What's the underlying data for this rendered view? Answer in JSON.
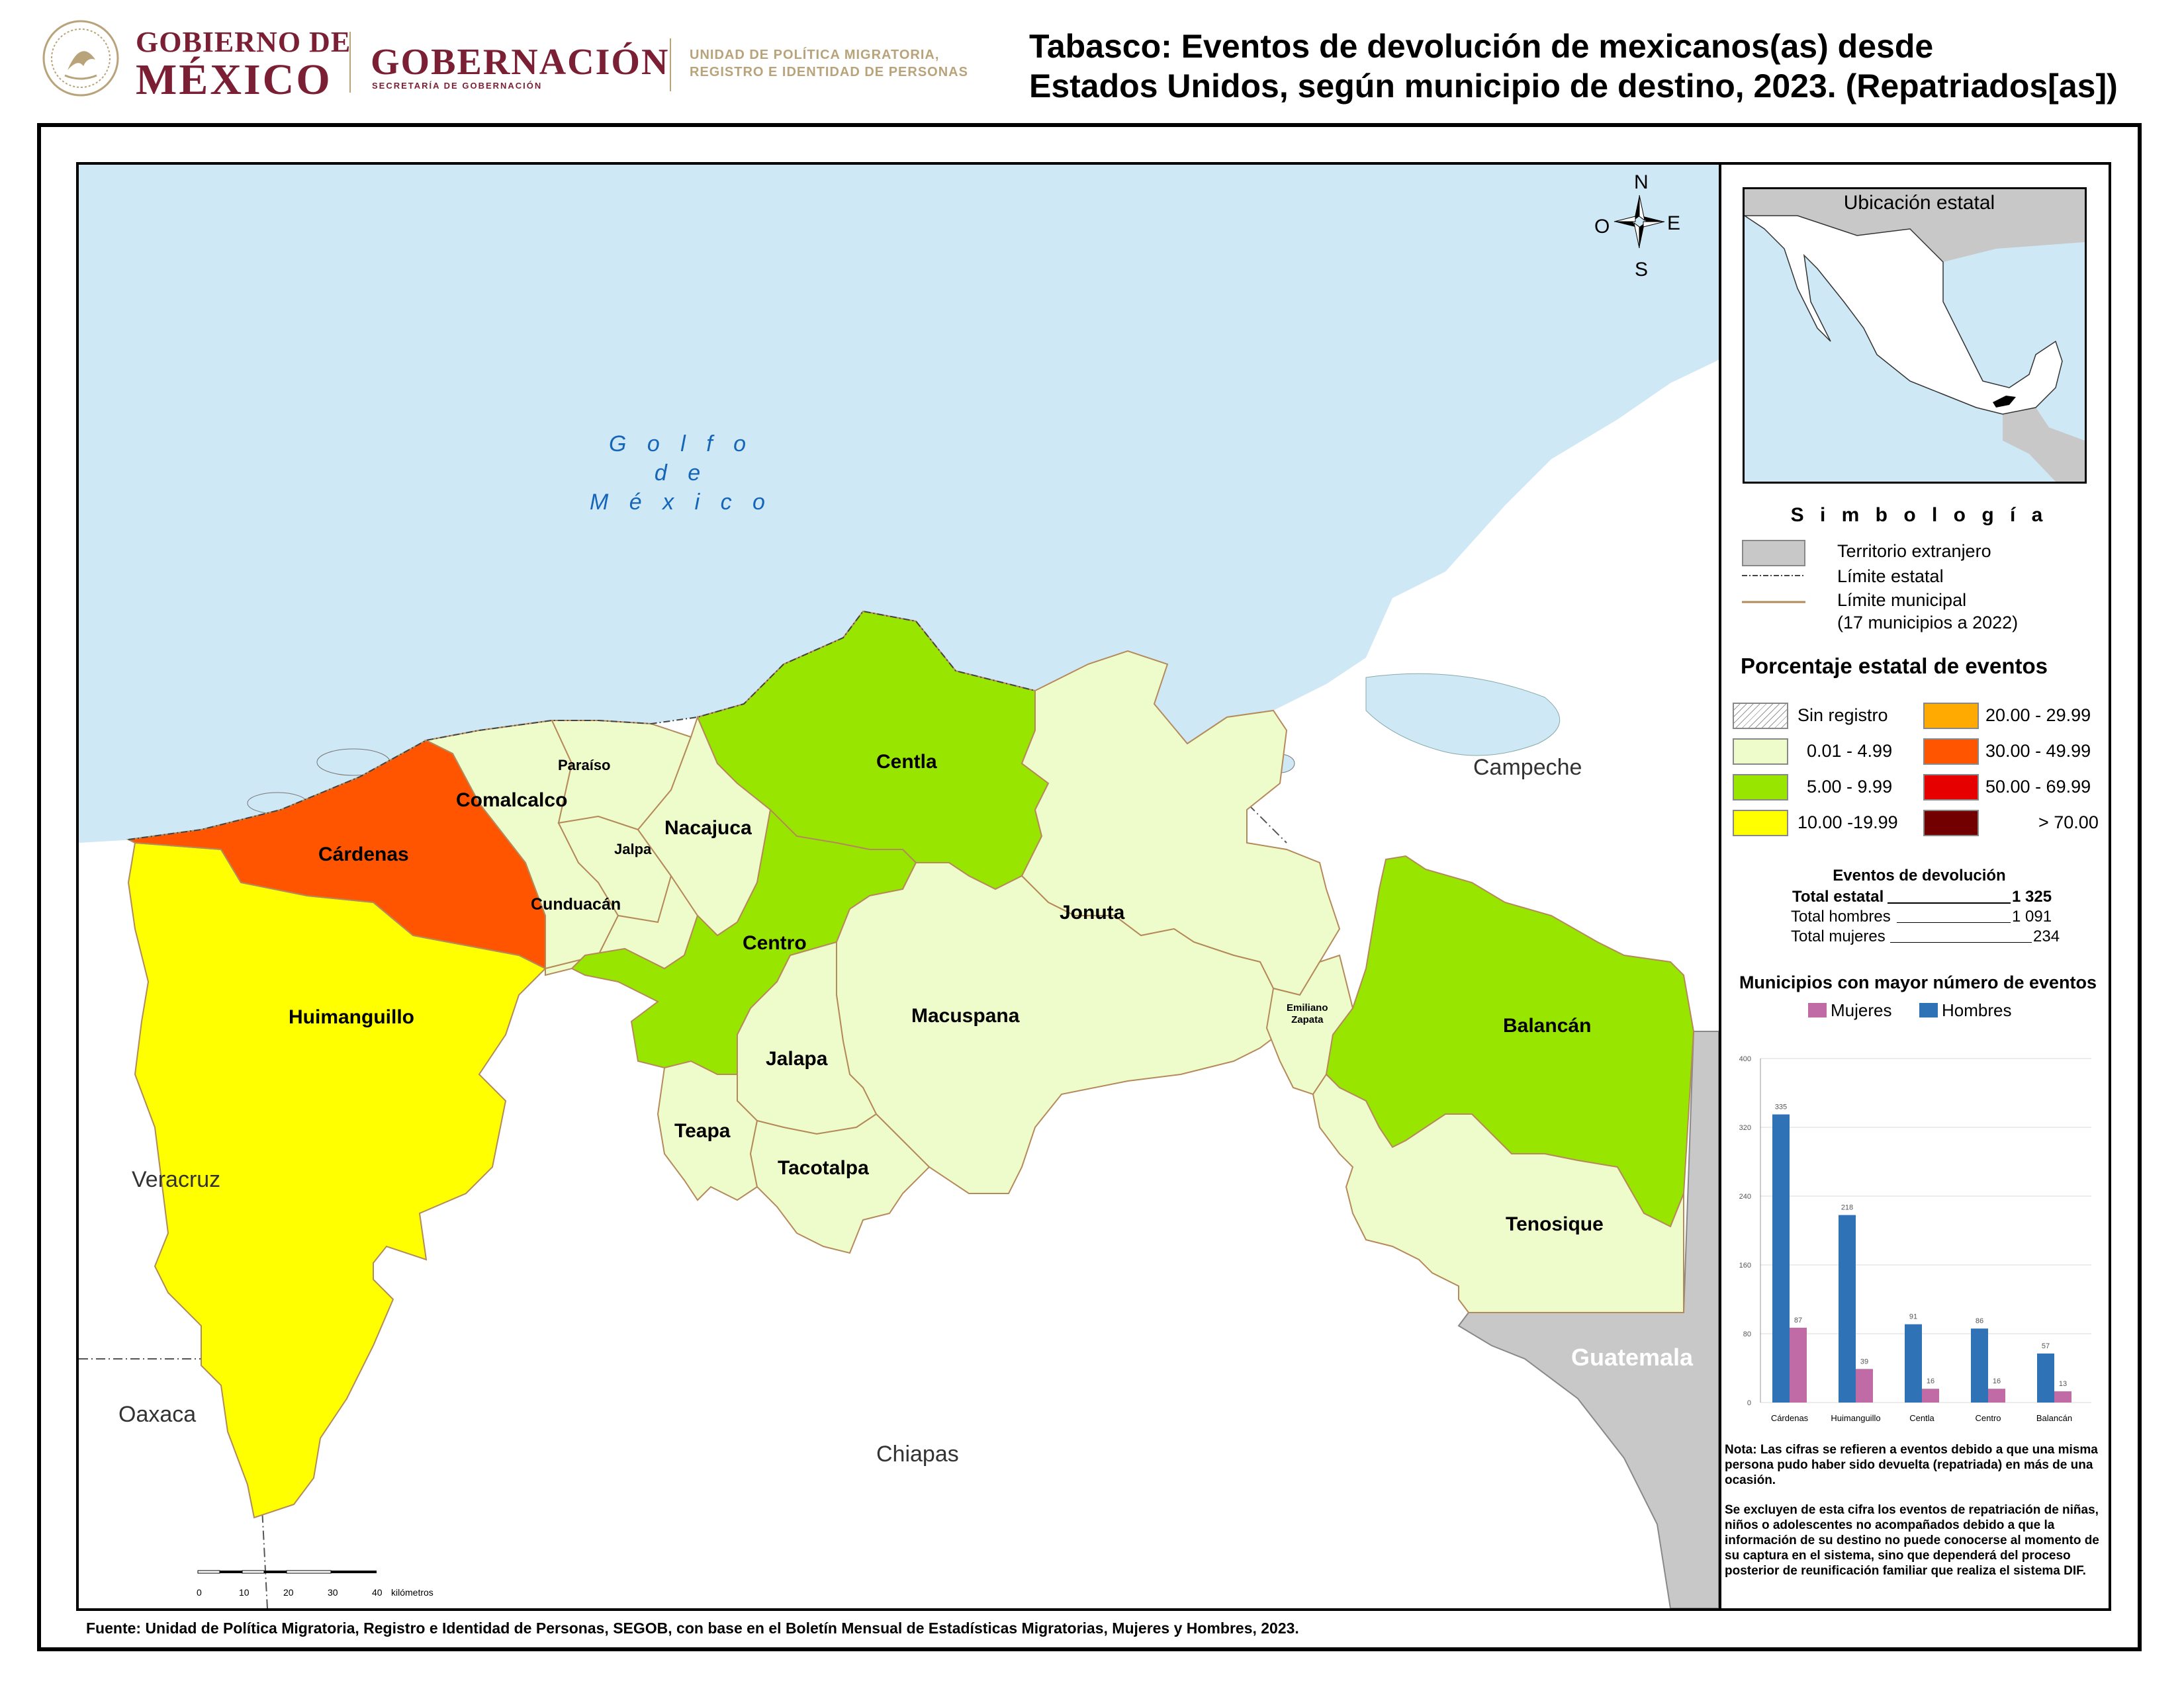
{
  "header": {
    "gob_line1": "GOBIERNO DE",
    "gob_line2": "MÉXICO",
    "gobernacion": "GOBERNACIÓN",
    "gobernacion_sub": "SECRETARÍA DE GOBERNACIÓN",
    "upm_line1": "UNIDAD DE POLÍTICA MIGRATORIA,",
    "upm_line2": "REGISTRO E IDENTIDAD DE PERSONAS"
  },
  "title": {
    "line1": "Tabasco: Eventos de devolución de mexicanos(as) desde",
    "line2": "Estados Unidos, según municipio de destino, 2023. (Repatriados[as])"
  },
  "map": {
    "gulf_label": [
      "G o l f o",
      "d e",
      "M é x i c o"
    ],
    "compass": {
      "n": "N",
      "s": "S",
      "e": "E",
      "w": "O"
    },
    "states": {
      "campeche": "Campeche",
      "veracruz": "Veracruz",
      "oaxaca": "Oaxaca",
      "chiapas": "Chiapas",
      "guatemala": "Guatemala"
    },
    "municipalities": {
      "cardenas": "Cárdenas",
      "huimanguillo": "Huimanguillo",
      "comalcalco": "Comalcalco",
      "paraiso": "Paraíso",
      "jalpa": "Jalpa",
      "cunduacan": "Cunduacán",
      "nacajuca": "Nacajuca",
      "centla": "Centla",
      "centro": "Centro",
      "jonuta": "Jonuta",
      "macuspana": "Macuspana",
      "jalapa": "Jalapa",
      "teapa": "Teapa",
      "tacotalpa": "Tacotalpa",
      "emiliano_zapata_1": "Emiliano",
      "emiliano_zapata_2": "Zapata",
      "balancan": "Balancán",
      "tenosique": "Tenosique"
    },
    "scale": {
      "ticks": [
        "0",
        "10",
        "20",
        "30",
        "40"
      ],
      "unit": "kilómetros"
    }
  },
  "colors": {
    "water": "#cfe8f5",
    "foreign": "#c8c8c8",
    "sin_registro": "#ffffff",
    "c_0_5": "#eefccc",
    "c_5_10": "#98e600",
    "c_10_20": "#ffff00",
    "c_20_30": "#ffaa00",
    "c_30_50": "#ff5500",
    "c_50_70": "#e60000",
    "c_70": "#730000",
    "mujeres": "#c06aa6",
    "hombres": "#2f72b6"
  },
  "inset": {
    "title": "Ubicación estatal"
  },
  "legend": {
    "simbologia": "S i m b o l o g í a",
    "territorio": "Territorio extranjero",
    "limite_estatal": "Límite estatal",
    "limite_municipal": "Límite municipal",
    "municipios_note": "(17 municipios a 2022)",
    "pct_title": "Porcentaje estatal de eventos",
    "classes": {
      "sin_registro": "Sin registro",
      "c1": "0.01  - 4.99",
      "c2": "5.00  - 9.99",
      "c3": "10.00 -19.99",
      "c4": "20.00 - 29.99",
      "c5": "30.00 - 49.99",
      "c6": "50.00 - 69.99",
      "c7": "> 70.00"
    }
  },
  "events": {
    "title": "Eventos de devolución",
    "total_label": "Total estatal",
    "total_value": "1 325",
    "hombres_label": "Total hombres",
    "hombres_value": "1 091",
    "mujeres_label": "Total mujeres",
    "mujeres_value": "234"
  },
  "chart_data": {
    "type": "bar",
    "title": "Municipios con mayor número de eventos",
    "categories": [
      "Cárdenas",
      "Huimanguillo",
      "Centla",
      "Centro",
      "Balancán"
    ],
    "series": [
      {
        "name": "Mujeres",
        "values": [
          87,
          39,
          16,
          16,
          13
        ]
      },
      {
        "name": "Hombres",
        "values": [
          335,
          218,
          91,
          86,
          57
        ]
      }
    ],
    "yticks": [
      "0",
      "80",
      "160",
      "240",
      "320",
      "400"
    ],
    "ylim": [
      0,
      400
    ]
  },
  "nota": {
    "p1": "Nota: Las cifras se refieren a eventos debido a que una misma persona pudo haber sido devuelta (repatriada) en más de una ocasión.",
    "p2": "Se excluyen de esta cifra los eventos de repatriación de niñas, niños o adolescentes no acompañados debido a que la información de su destino no puede conocerse al momento de su captura en el sistema, sino que dependerá del proceso posterior de reunificación familiar que realiza el sistema DIF."
  },
  "source": "Fuente: Unidad de Política Migratoria, Registro e Identidad de Personas, SEGOB, con base en el Boletín Mensual de Estadísticas Migratorias, Mujeres y Hombres, 2023."
}
